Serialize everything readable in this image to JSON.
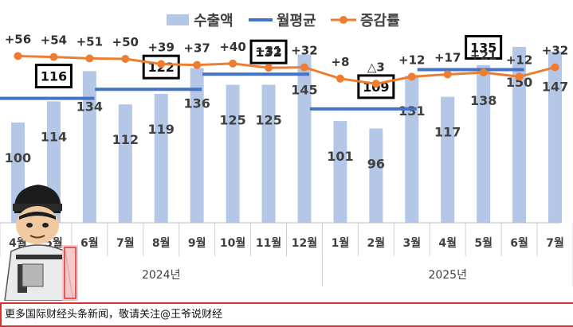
{
  "chart_data": {
    "type": "bar",
    "categories": [
      "4월",
      "5월",
      "6월",
      "7월",
      "8월",
      "9월",
      "10월",
      "11월",
      "12월",
      "1월",
      "2월",
      "3월",
      "4월",
      "5월",
      "6월",
      "7월"
    ],
    "groups": [
      {
        "label": "2024년",
        "count": 9
      },
      {
        "label": "2025년",
        "count": 7
      }
    ],
    "series": [
      {
        "name": "수출액",
        "kind": "bar",
        "color": "#b4c7e7",
        "values": [
          100,
          114,
          134,
          112,
          119,
          136,
          125,
          125,
          145,
          101,
          96,
          131,
          117,
          138,
          150,
          147
        ]
      },
      {
        "name": "월평균",
        "kind": "segment",
        "color": "#4472c4",
        "segments": [
          {
            "value": 116,
            "from": 0,
            "to": 2
          },
          {
            "value": 122,
            "from": 3,
            "to": 5
          },
          {
            "value": 132,
            "from": 6,
            "to": 8
          },
          {
            "value": 109,
            "from": 9,
            "to": 11
          },
          {
            "value": 135,
            "from": 12,
            "to": 14
          }
        ]
      },
      {
        "name": "증감률",
        "kind": "line",
        "color": "#ed7d31",
        "values": [
          56,
          54,
          51,
          50,
          39,
          37,
          40,
          31,
          32,
          8,
          -3,
          12,
          17,
          21,
          12,
          32
        ],
        "labels": [
          "+56",
          "+54",
          "+51",
          "+50",
          "+39",
          "+37",
          "+40",
          "+31",
          "+32",
          "+8",
          "△3",
          "+12",
          "+17",
          "+21",
          "+12",
          "+32"
        ]
      }
    ],
    "legend": "top",
    "grid": false
  },
  "footer": {
    "text": "更多国际财经头条新闻，敬请关注@王爷说财经"
  },
  "overlay": {
    "stamp_text": "王爷说财经"
  }
}
